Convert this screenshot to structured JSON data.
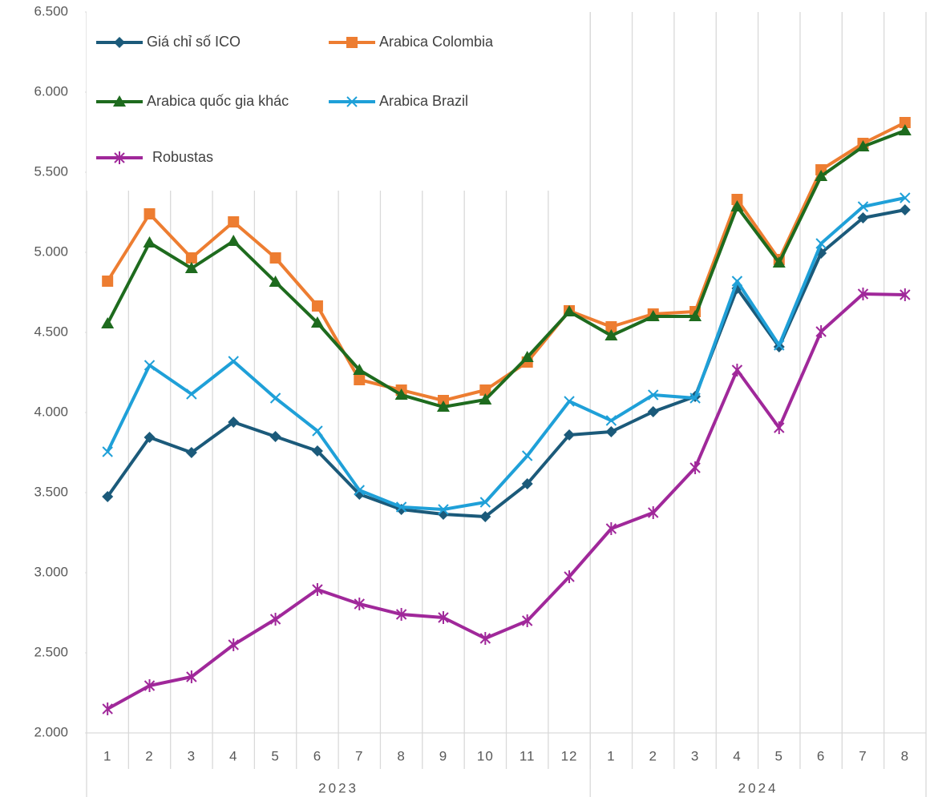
{
  "chart_data": {
    "type": "line",
    "categories": [
      "1",
      "2",
      "3",
      "4",
      "5",
      "6",
      "7",
      "8",
      "9",
      "10",
      "11",
      "12",
      "1",
      "2",
      "3",
      "4",
      "5",
      "6",
      "7",
      "8"
    ],
    "x_groups": [
      {
        "label": "2023",
        "span": 12
      },
      {
        "label": "2024",
        "span": 8
      }
    ],
    "ylim": [
      2000,
      6500
    ],
    "yticks": [
      {
        "value": 2000,
        "label": "2.000"
      },
      {
        "value": 2500,
        "label": "2.500"
      },
      {
        "value": 3000,
        "label": "3.000"
      },
      {
        "value": 3500,
        "label": "3.500"
      },
      {
        "value": 4000,
        "label": "4.000"
      },
      {
        "value": 4500,
        "label": "4.500"
      },
      {
        "value": 5000,
        "label": "5.000"
      },
      {
        "value": 5500,
        "label": "5.500"
      },
      {
        "value": 6000,
        "label": "6.000"
      },
      {
        "value": 6500,
        "label": "6.500"
      }
    ],
    "grid": "vertical",
    "legend": "top-left",
    "series": [
      {
        "name": "Giá chỉ số ICO",
        "color": "#1b5a7a",
        "marker": "diamond",
        "values": [
          3475,
          3845,
          3750,
          3940,
          3850,
          3760,
          3490,
          3395,
          3365,
          3350,
          3555,
          3860,
          3880,
          4005,
          4100,
          4775,
          4410,
          4995,
          5215,
          5265
        ]
      },
      {
        "name": "Arabica Colombia",
        "color": "#ed7d31",
        "marker": "square",
        "values": [
          4820,
          5240,
          4965,
          5190,
          4965,
          4665,
          4205,
          4140,
          4075,
          4140,
          4315,
          4635,
          4535,
          4615,
          4630,
          5330,
          4955,
          5515,
          5680,
          5810
        ]
      },
      {
        "name": "Arabica quốc gia khác",
        "color": "#1e6b1e",
        "marker": "triangle",
        "values": [
          4555,
          5060,
          4900,
          5070,
          4815,
          4560,
          4265,
          4110,
          4035,
          4080,
          4345,
          4630,
          4480,
          4600,
          4600,
          5285,
          4935,
          5475,
          5660,
          5760
        ]
      },
      {
        "name": "Arabica Brazil",
        "color": "#1fa0d8",
        "marker": "x",
        "values": [
          3755,
          4295,
          4115,
          4320,
          4090,
          3885,
          3515,
          3410,
          3395,
          3440,
          3730,
          4070,
          3950,
          4110,
          4090,
          4820,
          4420,
          5055,
          5285,
          5340
        ]
      },
      {
        "name": "Robustas",
        "color": "#a0289a",
        "marker": "star",
        "values": [
          2150,
          2295,
          2350,
          2550,
          2710,
          2895,
          2805,
          2740,
          2720,
          2590,
          2700,
          2975,
          3275,
          3375,
          3655,
          4265,
          3905,
          4505,
          4740,
          4735
        ]
      }
    ]
  }
}
